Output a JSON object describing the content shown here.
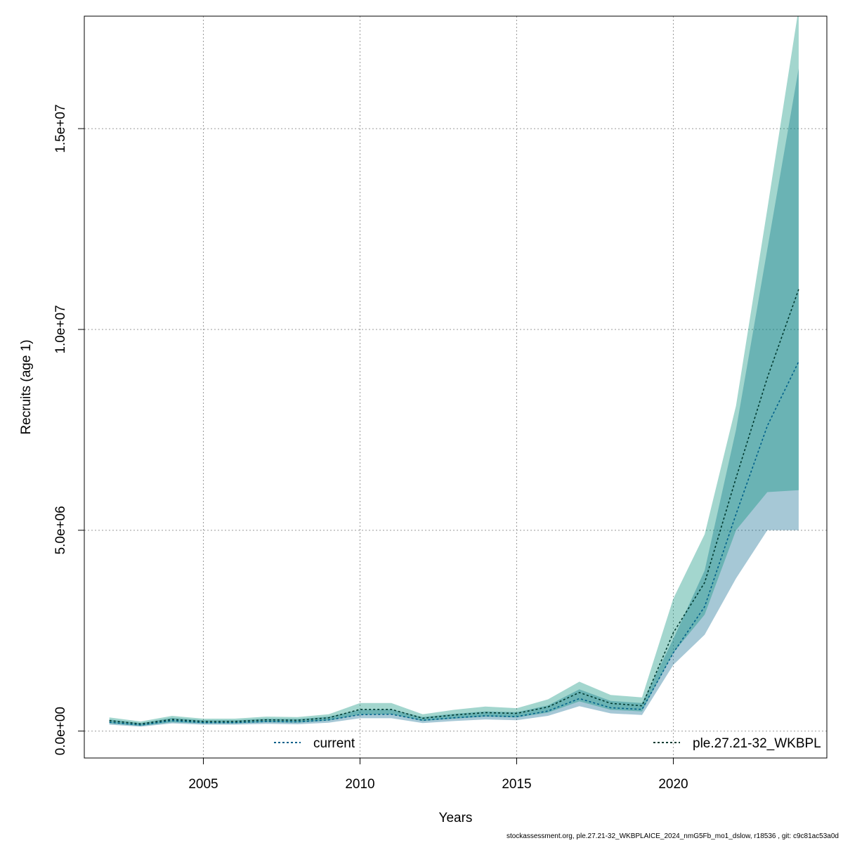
{
  "chart_data": {
    "type": "area",
    "xlabel": "Years",
    "ylabel": "Recruits (age 1)",
    "xlim": [
      2001.2,
      2024.9
    ],
    "ylim": [
      -670000,
      17800000
    ],
    "x_ticks": [
      2005,
      2010,
      2015,
      2020
    ],
    "x_tick_labels": [
      "2005",
      "2010",
      "2015",
      "2020"
    ],
    "y_ticks": [
      0,
      5000000,
      10000000,
      15000000
    ],
    "y_tick_labels": [
      "0.0e+00",
      "5.0e+06",
      "1.0e+07",
      "1.5e+07"
    ],
    "grid": true,
    "legend_placement": "bottom",
    "x": [
      2002,
      2003,
      2004,
      2005,
      2006,
      2007,
      2008,
      2009,
      2010,
      2011,
      2012,
      2013,
      2014,
      2015,
      2016,
      2017,
      2018,
      2019,
      2020,
      2021,
      2022,
      2023,
      2024
    ],
    "series": [
      {
        "name": "current",
        "color": "#00608A",
        "fill": "rgba(0,96,138,0.35)",
        "values": [
          220000,
          150000,
          260000,
          210000,
          210000,
          240000,
          230000,
          280000,
          410000,
          420000,
          270000,
          330000,
          380000,
          360000,
          500000,
          810000,
          580000,
          540000,
          1950000,
          3100000,
          5400000,
          7600000,
          9200000
        ],
        "lower": [
          160000,
          110000,
          190000,
          160000,
          160000,
          180000,
          170000,
          210000,
          320000,
          320000,
          200000,
          250000,
          290000,
          270000,
          380000,
          620000,
          440000,
          400000,
          1650000,
          2400000,
          3800000,
          5000000,
          5000000
        ],
        "upper": [
          290000,
          200000,
          330000,
          270000,
          270000,
          310000,
          300000,
          360000,
          530000,
          540000,
          350000,
          430000,
          490000,
          470000,
          640000,
          1040000,
          750000,
          700000,
          2300000,
          4000000,
          7500000,
          12000000,
          16500000
        ]
      },
      {
        "name": "ple.27.21-32_WKBPL",
        "color": "#003A30",
        "fill": "rgba(0,141,118,0.36)",
        "values": [
          260000,
          180000,
          290000,
          240000,
          240000,
          280000,
          270000,
          330000,
          540000,
          540000,
          320000,
          400000,
          460000,
          440000,
          600000,
          960000,
          690000,
          630000,
          2450000,
          3700000,
          6300000,
          8800000,
          11000000
        ],
        "lower": [
          190000,
          130000,
          220000,
          190000,
          190000,
          220000,
          210000,
          260000,
          410000,
          420000,
          250000,
          310000,
          360000,
          340000,
          460000,
          740000,
          530000,
          490000,
          1950000,
          2900000,
          5000000,
          5950000,
          6000000
        ],
        "upper": [
          340000,
          240000,
          380000,
          310000,
          310000,
          360000,
          350000,
          420000,
          700000,
          700000,
          420000,
          530000,
          610000,
          570000,
          790000,
          1230000,
          900000,
          840000,
          3300000,
          4900000,
          8100000,
          13000000,
          18000000
        ]
      }
    ]
  },
  "footer": "stockassessment.org, ple.27.21-32_WKBPLAICE_2024_nmG5Fb_mo1_dslow, r18536 , git: c9c81ac53a0d"
}
